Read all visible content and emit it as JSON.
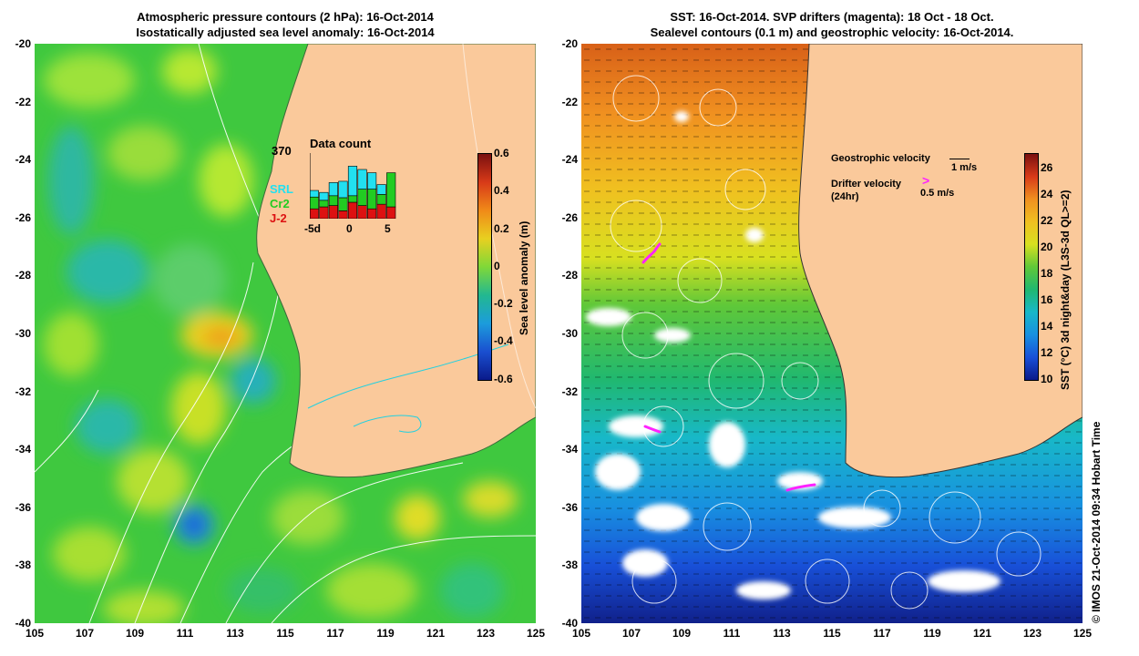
{
  "left_panel": {
    "title_line1": "Atmospheric pressure contours (2 hPa): 16-Oct-2014",
    "title_line2": "Isostatically adjusted sea level anomaly: 16-Oct-2014",
    "colorbar": {
      "label": "Sea level anomaly (m)",
      "ticks": [
        "0.6",
        "0.4",
        "0.2",
        "0",
        "-0.2",
        "-0.4",
        "-0.6"
      ]
    },
    "inset": {
      "max_label": "370",
      "title": "Data count",
      "x_ticks": [
        "-5d",
        "0",
        "5"
      ],
      "missions": [
        {
          "name": "SRL",
          "color": "#22e0f0"
        },
        {
          "name": "Cr2",
          "color": "#22cc22"
        },
        {
          "name": "J-2",
          "color": "#dd1111"
        }
      ],
      "bars": [
        {
          "j2": 0.15,
          "cr2": 0.18,
          "srl": 0.1
        },
        {
          "j2": 0.18,
          "cr2": 0.1,
          "srl": 0.12
        },
        {
          "j2": 0.2,
          "cr2": 0.15,
          "srl": 0.2
        },
        {
          "j2": 0.12,
          "cr2": 0.2,
          "srl": 0.25
        },
        {
          "j2": 0.25,
          "cr2": 0.1,
          "srl": 0.45
        },
        {
          "j2": 0.2,
          "cr2": 0.25,
          "srl": 0.3
        },
        {
          "j2": 0.15,
          "cr2": 0.3,
          "srl": 0.25
        },
        {
          "j2": 0.22,
          "cr2": 0.15,
          "srl": 0.15
        },
        {
          "j2": 0.18,
          "cr2": 0.52,
          "srl": 0.0
        }
      ]
    }
  },
  "right_panel": {
    "title_line1": "SST: 16-Oct-2014. SVP drifters (magenta): 18 Oct - 18 Oct.",
    "title_line2": "Sealevel contours (0.1 m) and geostrophic velocity: 16-Oct-2014.",
    "colorbar": {
      "label": "SST (°C) 3d night&day (L3S-3d QL>=2)",
      "ticks": [
        "26",
        "24",
        "22",
        "20",
        "18",
        "16",
        "14",
        "12",
        "10"
      ]
    },
    "legend": {
      "geo_label": "Geostrophic velocity",
      "geo_speed": "1 m/s",
      "drifter_label_1": "Drifter velocity",
      "drifter_label_2": "(24hr)",
      "drifter_speed": "0.5 m/s"
    },
    "credit": "© IMOS 21-Oct-2014 09:34 Hobart Time"
  },
  "axes": {
    "x_ticks": [
      "105",
      "107",
      "109",
      "111",
      "113",
      "115",
      "117",
      "119",
      "121",
      "123",
      "125"
    ],
    "y_ticks": [
      "-20",
      "-22",
      "-24",
      "-26",
      "-28",
      "-30",
      "-32",
      "-34",
      "-36",
      "-38",
      "-40"
    ]
  },
  "colors": {
    "land": "#fac99b",
    "drifter": "#ff22ff"
  }
}
